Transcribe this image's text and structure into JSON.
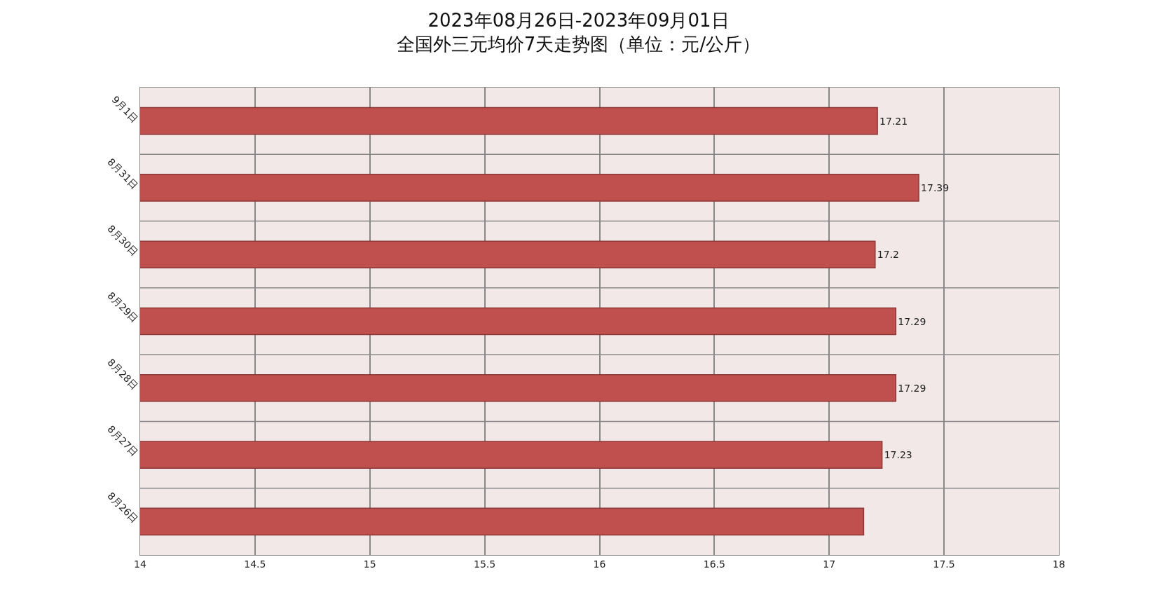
{
  "chart_data": {
    "type": "bar",
    "orientation": "horizontal",
    "title": "2023年08月26日-2023年09月01日",
    "subtitle": "全国外三元均价7天走势图（单位：元/公斤）",
    "categories": [
      "9月1日",
      "8月31日",
      "8月30日",
      "8月29日",
      "8月28日",
      "8月27日",
      "8月26日"
    ],
    "values": [
      17.21,
      17.39,
      17.2,
      17.29,
      17.29,
      17.23,
      17.15
    ],
    "value_labels": [
      "17.21",
      "17.39",
      "17.2",
      "17.29",
      "17.29",
      "17.23",
      null
    ],
    "color": "#c0504d",
    "xlim": [
      14,
      18
    ],
    "xticks": [
      14,
      14.5,
      15,
      15.5,
      16,
      16.5,
      17,
      17.5,
      18
    ],
    "grid": true
  }
}
